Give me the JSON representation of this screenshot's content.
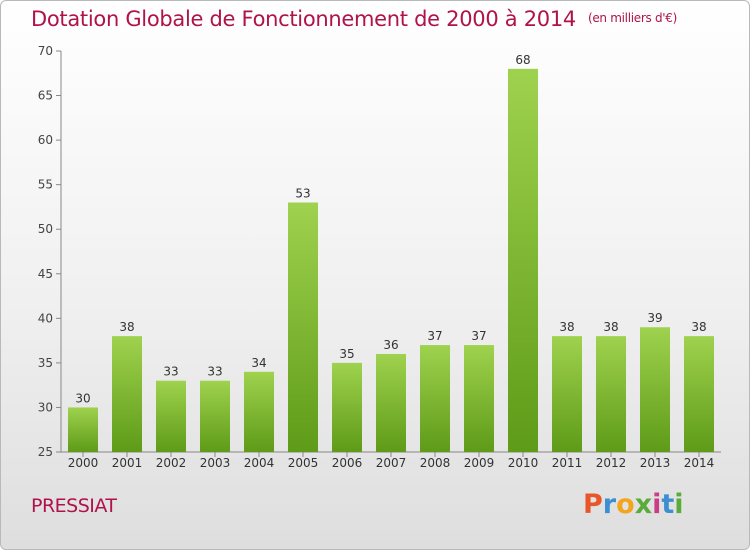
{
  "title": "Dotation Globale de Fonctionnement de 2000 à 2014",
  "unit": "(en milliers d'€)",
  "town": "PRESSIAT",
  "logo": [
    "P",
    "r",
    "o",
    "x",
    "i",
    "t",
    "i"
  ],
  "colors": {
    "title": "#b0124a",
    "bar_light": "#9fd24e",
    "bar_dark": "#5e9b18",
    "axis": "#888888"
  },
  "chart_data": {
    "type": "bar",
    "title": "Dotation Globale de Fonctionnement de 2000 à 2014",
    "subtitle": "(en milliers d'€)",
    "categories": [
      "2000",
      "2001",
      "2002",
      "2003",
      "2004",
      "2005",
      "2006",
      "2007",
      "2008",
      "2009",
      "2010",
      "2011",
      "2012",
      "2013",
      "2014"
    ],
    "values": [
      30,
      38,
      33,
      33,
      34,
      53,
      35,
      36,
      37,
      37,
      68,
      38,
      38,
      39,
      38
    ],
    "ylim": [
      25,
      70
    ],
    "yticks": [
      25,
      30,
      35,
      40,
      45,
      50,
      55,
      60,
      65,
      70
    ],
    "grid": false,
    "xlabel": "",
    "ylabel": ""
  }
}
